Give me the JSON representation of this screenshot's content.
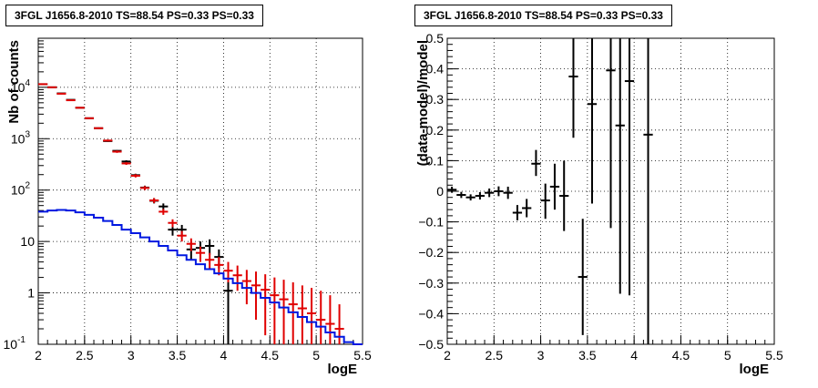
{
  "chart_data": [
    {
      "type": "histogram",
      "title": "3FGL J1656.8-2010 TS=88.54 PS=0.33 PS=0.33",
      "xlabel": "logE",
      "ylabel": "Nb of counts",
      "xlim": [
        2,
        5.5
      ],
      "ylim": [
        0.1,
        90000
      ],
      "yscale": "log",
      "grid": true,
      "x_ticks": [
        "2",
        "2.5",
        "3",
        "3.5",
        "4",
        "4.5",
        "5",
        "5.5"
      ],
      "y_ticks": [
        {
          "v": 0.1,
          "label": "10",
          "exp": "-1"
        },
        {
          "v": 1,
          "label": "1",
          "exp": ""
        },
        {
          "v": 10,
          "label": "10",
          "exp": ""
        },
        {
          "v": 100,
          "label": "10",
          "exp": "2"
        },
        {
          "v": 1000,
          "label": "10",
          "exp": "3"
        },
        {
          "v": 10000,
          "label": "10",
          "exp": "4"
        }
      ],
      "series": [
        {
          "color": "#000000",
          "points": [
            {
              "x": 2.05,
              "y": 11500,
              "lo": 11400,
              "hi": 11600
            },
            {
              "x": 2.15,
              "y": 10000,
              "lo": 9900,
              "hi": 10100
            },
            {
              "x": 2.25,
              "y": 7600,
              "lo": 7500,
              "hi": 7700
            },
            {
              "x": 2.35,
              "y": 5700,
              "lo": 5600,
              "hi": 5800
            },
            {
              "x": 2.45,
              "y": 4000,
              "lo": 3950,
              "hi": 4050
            },
            {
              "x": 2.55,
              "y": 2500,
              "lo": 2450,
              "hi": 2550
            },
            {
              "x": 2.65,
              "y": 1600,
              "lo": 1560,
              "hi": 1640
            },
            {
              "x": 2.75,
              "y": 900,
              "lo": 870,
              "hi": 930
            },
            {
              "x": 2.85,
              "y": 580,
              "lo": 560,
              "hi": 600
            },
            {
              "x": 2.95,
              "y": 360,
              "lo": 340,
              "hi": 380
            },
            {
              "x": 3.05,
              "y": 195,
              "lo": 182,
              "hi": 208
            },
            {
              "x": 3.15,
              "y": 112,
              "lo": 102,
              "hi": 122
            },
            {
              "x": 3.25,
              "y": 62,
              "lo": 55,
              "hi": 70
            },
            {
              "x": 3.35,
              "y": 48,
              "lo": 41,
              "hi": 55
            },
            {
              "x": 3.45,
              "y": 17,
              "lo": 13,
              "hi": 21
            },
            {
              "x": 3.55,
              "y": 17,
              "lo": 13,
              "hi": 21
            },
            {
              "x": 3.65,
              "y": 7,
              "lo": 4.5,
              "hi": 9.5
            },
            {
              "x": 3.75,
              "y": 7.5,
              "lo": 5,
              "hi": 10
            },
            {
              "x": 3.85,
              "y": 8.2,
              "lo": 5.5,
              "hi": 11
            },
            {
              "x": 3.95,
              "y": 5,
              "lo": 3,
              "hi": 7
            },
            {
              "x": 4.05,
              "y": 1.1,
              "lo": 0.1,
              "hi": 2.2
            }
          ]
        },
        {
          "color": "#e00000",
          "points": [
            {
              "x": 2.05,
              "y": 11500,
              "lo": 11300,
              "hi": 11700
            },
            {
              "x": 2.15,
              "y": 10000,
              "lo": 9800,
              "hi": 10200
            },
            {
              "x": 2.25,
              "y": 7500,
              "lo": 7300,
              "hi": 7700
            },
            {
              "x": 2.35,
              "y": 5600,
              "lo": 5450,
              "hi": 5750
            },
            {
              "x": 2.45,
              "y": 4000,
              "lo": 3900,
              "hi": 4100
            },
            {
              "x": 2.55,
              "y": 2500,
              "lo": 2420,
              "hi": 2580
            },
            {
              "x": 2.65,
              "y": 1600,
              "lo": 1540,
              "hi": 1660
            },
            {
              "x": 2.75,
              "y": 920,
              "lo": 880,
              "hi": 960
            },
            {
              "x": 2.85,
              "y": 560,
              "lo": 530,
              "hi": 590
            },
            {
              "x": 2.95,
              "y": 330,
              "lo": 310,
              "hi": 350
            },
            {
              "x": 3.05,
              "y": 190,
              "lo": 176,
              "hi": 204
            },
            {
              "x": 3.15,
              "y": 110,
              "lo": 100,
              "hi": 120
            },
            {
              "x": 3.25,
              "y": 63,
              "lo": 56,
              "hi": 70
            },
            {
              "x": 3.35,
              "y": 38,
              "lo": 33,
              "hi": 43
            },
            {
              "x": 3.45,
              "y": 23,
              "lo": 19,
              "hi": 27
            },
            {
              "x": 3.55,
              "y": 13,
              "lo": 10,
              "hi": 16
            },
            {
              "x": 3.65,
              "y": 9,
              "lo": 6.5,
              "hi": 11.5
            },
            {
              "x": 3.75,
              "y": 6,
              "lo": 4,
              "hi": 8
            },
            {
              "x": 3.85,
              "y": 4.4,
              "lo": 2.8,
              "hi": 6
            },
            {
              "x": 3.95,
              "y": 3.5,
              "lo": 2.2,
              "hi": 5
            },
            {
              "x": 4.05,
              "y": 2.7,
              "lo": 1.6,
              "hi": 4
            },
            {
              "x": 4.15,
              "y": 2.2,
              "lo": 1.1,
              "hi": 3.4
            },
            {
              "x": 4.25,
              "y": 1.7,
              "lo": 0.6,
              "hi": 2.8
            },
            {
              "x": 4.35,
              "y": 1.4,
              "lo": 0.3,
              "hi": 2.6
            },
            {
              "x": 4.45,
              "y": 1.15,
              "lo": 0.15,
              "hi": 2.3
            },
            {
              "x": 4.55,
              "y": 0.9,
              "lo": 0.1,
              "hi": 2
            },
            {
              "x": 4.65,
              "y": 0.75,
              "lo": 0.1,
              "hi": 1.8
            },
            {
              "x": 4.75,
              "y": 0.6,
              "lo": 0.1,
              "hi": 1.6
            },
            {
              "x": 4.85,
              "y": 0.5,
              "lo": 0.1,
              "hi": 1.4
            },
            {
              "x": 4.95,
              "y": 0.4,
              "lo": 0.1,
              "hi": 1.25
            },
            {
              "x": 5.05,
              "y": 0.3,
              "lo": 0.1,
              "hi": 1.1
            },
            {
              "x": 5.15,
              "y": 0.25,
              "lo": 0.1,
              "hi": 0.9
            },
            {
              "x": 5.25,
              "y": 0.2,
              "lo": 0.1,
              "hi": 0.6
            }
          ]
        },
        {
          "color": "#0018e0",
          "step_edges": [
            2.0,
            2.1,
            2.2,
            2.3,
            2.4,
            2.5,
            2.6,
            2.7,
            2.8,
            2.9,
            3.0,
            3.1,
            3.2,
            3.3,
            3.4,
            3.5,
            3.6,
            3.7,
            3.8,
            3.9,
            4.0,
            4.1,
            4.2,
            4.3,
            4.4,
            4.5,
            4.6,
            4.7,
            4.8,
            4.9,
            5.0,
            5.1,
            5.2,
            5.3,
            5.4,
            5.5
          ],
          "step_values": [
            38,
            40,
            41,
            40,
            37,
            33,
            29,
            25,
            21,
            17,
            14.5,
            12,
            10,
            8.2,
            6.7,
            5.4,
            4.4,
            3.6,
            2.9,
            2.4,
            1.9,
            1.55,
            1.25,
            1.0,
            0.8,
            0.65,
            0.52,
            0.42,
            0.34,
            0.27,
            0.22,
            0.17,
            0.14,
            0.11,
            0.1
          ]
        }
      ]
    },
    {
      "type": "scatter",
      "title": "3FGL J1656.8-2010 TS=88.54 PS=0.33 PS=0.33",
      "xlabel": "logE",
      "ylabel": "(data-model)/model",
      "xlim": [
        2,
        5.5
      ],
      "ylim": [
        -0.5,
        0.5
      ],
      "grid": true,
      "x_ticks": [
        "2",
        "2.5",
        "3",
        "3.5",
        "4",
        "4.5",
        "5",
        "5.5"
      ],
      "y_ticks": [
        "-0.5",
        "-0.4",
        "-0.3",
        "-0.2",
        "-0.1",
        "0",
        "0.1",
        "0.2",
        "0.3",
        "0.4",
        "0.5"
      ],
      "series": [
        {
          "color": "#000000",
          "points": [
            {
              "x": 2.05,
              "y": 0.005,
              "lo": -0.005,
              "hi": 0.015
            },
            {
              "x": 2.15,
              "y": -0.012,
              "lo": -0.022,
              "hi": -0.002
            },
            {
              "x": 2.25,
              "y": -0.02,
              "lo": -0.03,
              "hi": -0.01
            },
            {
              "x": 2.35,
              "y": -0.015,
              "lo": -0.027,
              "hi": -0.003
            },
            {
              "x": 2.45,
              "y": -0.005,
              "lo": -0.019,
              "hi": 0.009
            },
            {
              "x": 2.55,
              "y": 0.0,
              "lo": -0.016,
              "hi": 0.016
            },
            {
              "x": 2.65,
              "y": -0.005,
              "lo": -0.025,
              "hi": 0.015
            },
            {
              "x": 2.75,
              "y": -0.07,
              "lo": -0.095,
              "hi": -0.045
            },
            {
              "x": 2.85,
              "y": -0.055,
              "lo": -0.085,
              "hi": -0.025
            },
            {
              "x": 2.95,
              "y": 0.09,
              "lo": 0.05,
              "hi": 0.135
            },
            {
              "x": 3.05,
              "y": -0.03,
              "lo": -0.09,
              "hi": 0.025
            },
            {
              "x": 3.15,
              "y": 0.015,
              "lo": -0.06,
              "hi": 0.09
            },
            {
              "x": 3.25,
              "y": -0.015,
              "lo": -0.13,
              "hi": 0.1
            },
            {
              "x": 3.35,
              "y": 0.375,
              "lo": 0.175,
              "hi": 0.56
            },
            {
              "x": 3.45,
              "y": -0.28,
              "lo": -0.47,
              "hi": -0.09
            },
            {
              "x": 3.55,
              "y": 0.285,
              "lo": -0.04,
              "hi": 0.6
            },
            {
              "x": 3.75,
              "y": 0.395,
              "lo": -0.12,
              "hi": 0.6
            },
            {
              "x": 3.85,
              "y": 0.215,
              "lo": -0.335,
              "hi": 0.6
            },
            {
              "x": 3.95,
              "y": 0.36,
              "lo": -0.34,
              "hi": 0.6
            },
            {
              "x": 4.15,
              "y": 0.185,
              "lo": -0.55,
              "hi": 0.6
            }
          ]
        }
      ]
    }
  ]
}
